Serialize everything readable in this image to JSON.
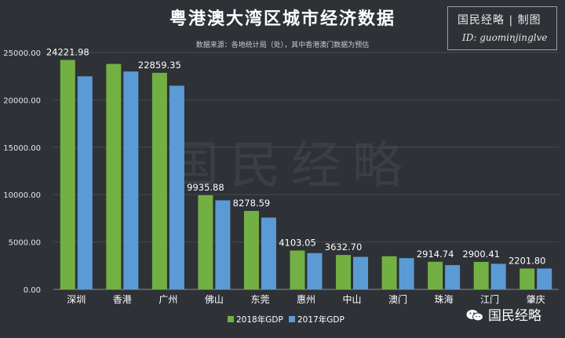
{
  "title": "粤港澳大湾区城市经济数据",
  "subtitle": "数据来源：各地统计局（处），其中香港澳门数据为预估",
  "brand": {
    "line1": "国民经略 | 制图",
    "line2": "ID: guominjinglve"
  },
  "watermark": "国民经略",
  "wechat_label": "国民经略",
  "icon_names": [
    "wechat-icon"
  ],
  "colors": {
    "s2018": "#72b043",
    "s2017": "#5b9bd5",
    "background": "#2e3136"
  },
  "chart_data": {
    "type": "bar",
    "title": "粤港澳大湾区城市经济数据",
    "categories": [
      "深圳",
      "香港",
      "广州",
      "佛山",
      "东莞",
      "惠州",
      "中山",
      "澳门",
      "珠海",
      "江门",
      "肇庆"
    ],
    "series": [
      {
        "name": "2018年GDP",
        "values": [
          24221.98,
          23800,
          22859.35,
          9935.88,
          8278.59,
          4103.05,
          3632.7,
          3500,
          2914.74,
          2900.41,
          2201.8
        ]
      },
      {
        "name": "2017年GDP",
        "values": [
          22490,
          23000,
          21500,
          9400,
          7580,
          3830,
          3430,
          3300,
          2560,
          2700,
          2200
        ]
      }
    ],
    "data_labels": [
      "24221.98",
      "",
      "22859.35",
      "9935.88",
      "8278.59",
      "4103.05",
      "3632.70",
      "",
      "2914.74",
      "2900.41",
      "2201.80"
    ],
    "yticks": [
      "0.00",
      "5000.00",
      "10000.00",
      "15000.00",
      "20000.00",
      "25000.00"
    ],
    "ylim": [
      0,
      25000
    ],
    "grid": true,
    "legend_position": "bottom-center"
  }
}
